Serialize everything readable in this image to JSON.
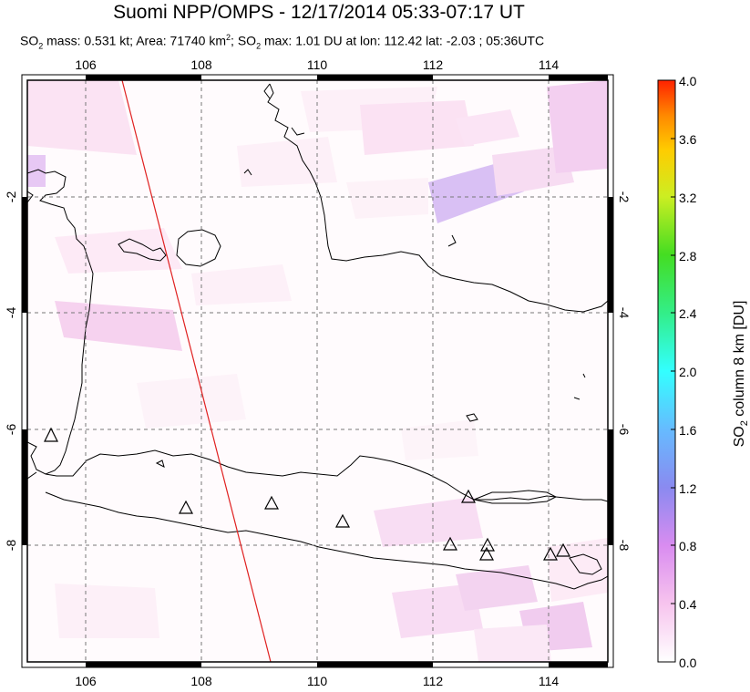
{
  "header": {
    "title": "Suomi NPP/OMPS - 12/17/2014 05:33-07:17 UT",
    "subtitle_parts": {
      "so2_a": "SO",
      "sub2_a": "2",
      "mass": " mass: 0.531 kt; Area: 71740 km",
      "sup2": "2",
      "sep": "; SO",
      "sub2_b": "2",
      "rest": " max: 1.01 DU at lon: 112.42 lat: -2.03 ; 05:36UTC"
    }
  },
  "map": {
    "lon_range": [
      105,
      115
    ],
    "lat_range": [
      -10,
      0
    ],
    "lon_ticks_top": [
      "106",
      "108",
      "110",
      "112",
      "114"
    ],
    "lon_ticks_bottom": [
      "106",
      "108",
      "110",
      "112",
      "114"
    ],
    "lat_ticks_left": [
      "-2",
      "-4",
      "-6",
      "-8"
    ],
    "lat_ticks_right": [
      "-2",
      "-4",
      "-6",
      "-8"
    ],
    "volcano_marker": "triangle-outline",
    "track_line_color": "#e02020"
  },
  "colorbar": {
    "label_prefix": "SO",
    "label_sub": "2",
    "label_suffix": " column 8 km [DU]",
    "ticks": [
      "4.0",
      "3.6",
      "3.2",
      "2.8",
      "2.4",
      "2.0",
      "1.6",
      "1.2",
      "0.8",
      "0.4",
      "0.0"
    ],
    "colors": [
      "#ff2200",
      "#ff7700",
      "#ffcc00",
      "#aadd22",
      "#44dd44",
      "#33ddcc",
      "#66ccff",
      "#8888ee",
      "#cc66ee",
      "#ee99ee",
      "#ffffff"
    ]
  }
}
